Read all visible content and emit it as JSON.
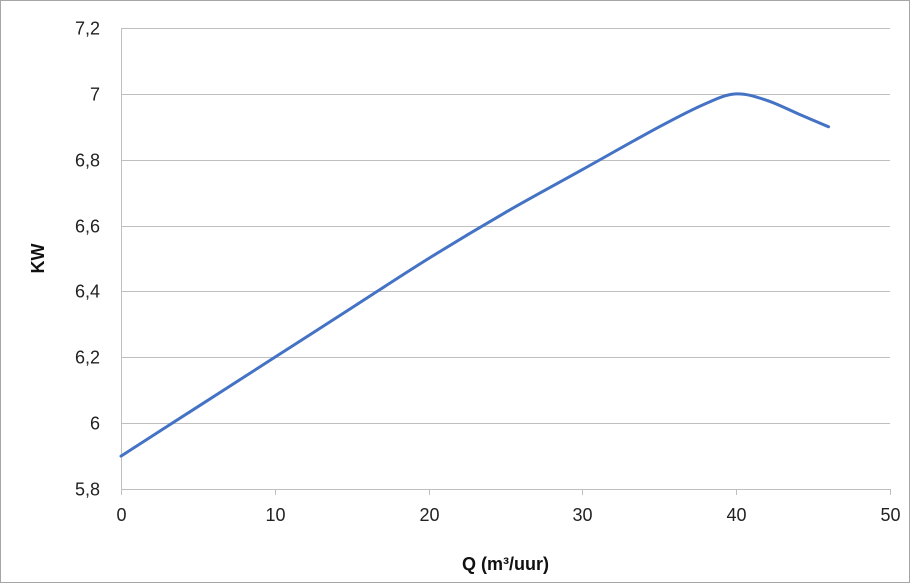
{
  "chart_data": {
    "type": "line",
    "title": "",
    "xlabel": "Q (m³/uur)",
    "ylabel": "KW",
    "xlim": [
      0,
      50
    ],
    "ylim": [
      5.8,
      7.2
    ],
    "x_ticks": [
      0,
      10,
      20,
      30,
      40,
      50
    ],
    "x_tick_labels": [
      "0",
      "10",
      "20",
      "30",
      "40",
      "50"
    ],
    "y_ticks": [
      5.8,
      6.0,
      6.2,
      6.4,
      6.6,
      6.8,
      7.0,
      7.2
    ],
    "y_tick_labels": [
      "5,8",
      "6",
      "6,2",
      "6,4",
      "6,6",
      "6,8",
      "7",
      "7,2"
    ],
    "grid": "horizontal",
    "legend": "none",
    "series": [
      {
        "color": "#4472C4",
        "x": [
          0,
          5,
          10,
          15,
          20,
          25,
          30,
          35,
          38,
          40,
          42,
          44,
          46
        ],
        "y": [
          5.9,
          6.05,
          6.2,
          6.35,
          6.5,
          6.64,
          6.77,
          6.9,
          6.97,
          7.0,
          6.98,
          6.94,
          6.9
        ]
      }
    ]
  }
}
